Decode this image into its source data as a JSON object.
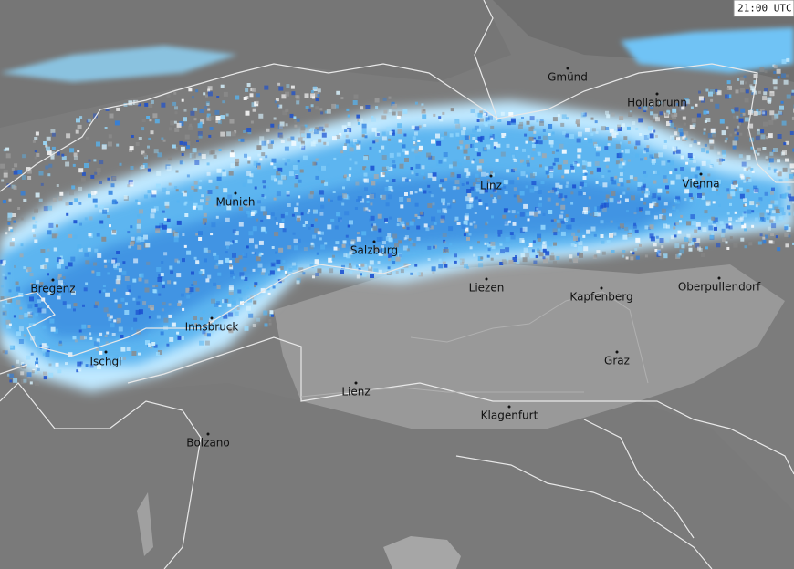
{
  "timestamp": "21:00 UTC",
  "cities": [
    "Gmünd",
    "Hollabrunn",
    "Linz",
    "Vienna",
    "Munich",
    "Salzburg",
    "Liezen",
    "Kapfenberg",
    "Oberpullendorf",
    "Bregenz",
    "Innsbruck",
    "Ischgl",
    "Graz",
    "Lienz",
    "Klagenfurt",
    "Bolzano"
  ]
}
